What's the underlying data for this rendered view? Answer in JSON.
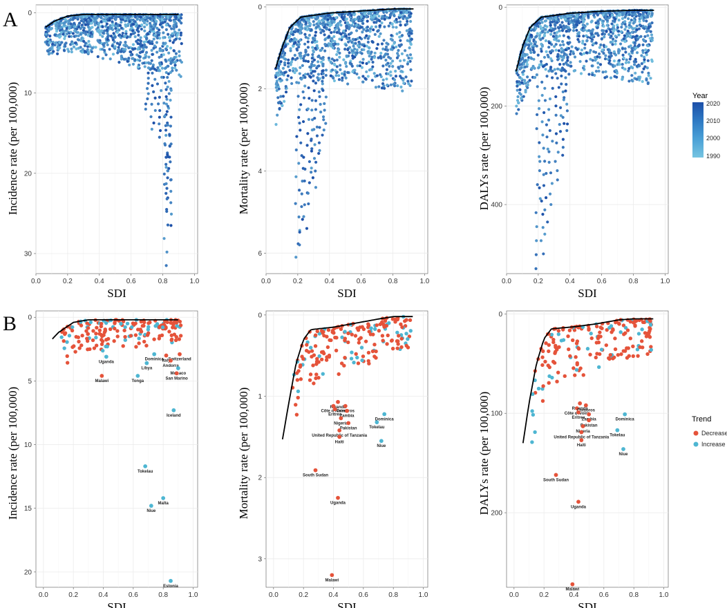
{
  "panel_letters": [
    "A",
    "B"
  ],
  "legend_year": {
    "title": "Year",
    "labels": [
      "2020",
      "2010",
      "2000",
      "1990"
    ],
    "colors": [
      "#1c4fa8",
      "#2e79c3",
      "#4aa0d6",
      "#76c4e1"
    ]
  },
  "legend_trend": {
    "title": "Trend",
    "items": [
      {
        "label": "Decrease",
        "color": "#e5533a"
      },
      {
        "label": "Increase",
        "color": "#4eb6d2"
      }
    ]
  },
  "colors": {
    "decrease": "#e5533a",
    "increase": "#4eb6d2",
    "frontier": "#000000",
    "grid": "#ebebeb",
    "year_high": "#1c4fa8",
    "year_low": "#76c4e1"
  },
  "chart_data": [
    {
      "id": "A1",
      "type": "scatter",
      "title": "",
      "xlabel": "SDI",
      "ylabel": "Incidence rate (per 100,000)",
      "xlim": [
        0,
        1.02
      ],
      "ylim": [
        -1,
        32.5
      ],
      "y_reversed": true,
      "x_ticks": [
        "0.0",
        "0.2",
        "0.4",
        "0.6",
        "0.8",
        "1.0"
      ],
      "y_ticks": [
        "0",
        "10",
        "20",
        "30"
      ],
      "frontier": [
        [
          0.06,
          1.8
        ],
        [
          0.12,
          1.0
        ],
        [
          0.2,
          0.4
        ],
        [
          0.3,
          0.2
        ],
        [
          0.5,
          0.2
        ],
        [
          0.7,
          0.2
        ],
        [
          0.9,
          0.2
        ]
      ],
      "color_by": "year",
      "outliers": [
        [
          0.82,
          31.5
        ],
        [
          0.84,
          26.5
        ],
        [
          0.83,
          24.5
        ],
        [
          0.84,
          20.8
        ],
        [
          0.82,
          22.5
        ],
        [
          0.78,
          15.5
        ],
        [
          0.74,
          14.5
        ],
        [
          0.7,
          12
        ]
      ]
    },
    {
      "id": "A2",
      "type": "scatter",
      "title": "",
      "xlabel": "SDI",
      "ylabel": "Mortality rate (per 100,000)",
      "xlim": [
        0,
        1.02
      ],
      "ylim": [
        -0.05,
        6.5
      ],
      "y_reversed": true,
      "x_ticks": [
        "0.0",
        "0.2",
        "0.4",
        "0.6",
        "0.8",
        "1.0"
      ],
      "y_ticks": [
        "0",
        "2",
        "4",
        "6"
      ],
      "frontier": [
        [
          0.06,
          1.5
        ],
        [
          0.1,
          1.0
        ],
        [
          0.15,
          0.5
        ],
        [
          0.22,
          0.25
        ],
        [
          0.4,
          0.15
        ],
        [
          0.6,
          0.1
        ],
        [
          0.8,
          0.05
        ],
        [
          0.93,
          0.05
        ]
      ],
      "color_by": "year",
      "outliers": [
        [
          0.2,
          6.1
        ],
        [
          0.22,
          5.8
        ],
        [
          0.25,
          5.4
        ],
        [
          0.28,
          4.8
        ],
        [
          0.3,
          4.4
        ],
        [
          0.32,
          4.0
        ],
        [
          0.35,
          3.5
        ],
        [
          0.37,
          3.0
        ]
      ]
    },
    {
      "id": "A3",
      "type": "scatter",
      "title": "",
      "xlabel": "SDI",
      "ylabel": "DALYs rate (per 100,000)",
      "xlim": [
        0,
        1.02
      ],
      "ylim": [
        -5,
        540
      ],
      "y_reversed": true,
      "x_ticks": [
        "0.0",
        "0.2",
        "0.4",
        "0.6",
        "0.8",
        "1.0"
      ],
      "y_ticks": [
        "0",
        "200",
        "400"
      ],
      "frontier": [
        [
          0.06,
          130
        ],
        [
          0.1,
          80
        ],
        [
          0.15,
          40
        ],
        [
          0.22,
          20
        ],
        [
          0.4,
          12
        ],
        [
          0.6,
          8
        ],
        [
          0.8,
          6
        ],
        [
          0.93,
          6
        ]
      ],
      "color_by": "year",
      "outliers": [
        [
          0.2,
          530
        ],
        [
          0.22,
          500
        ],
        [
          0.25,
          460
        ],
        [
          0.28,
          400
        ],
        [
          0.32,
          350
        ],
        [
          0.35,
          300
        ],
        [
          0.37,
          250
        ]
      ]
    },
    {
      "id": "B1",
      "type": "scatter",
      "title": "",
      "xlabel": "SDI",
      "ylabel": "Incidence rate (per 100,000)",
      "xlim": [
        -0.05,
        1.03
      ],
      "ylim": [
        -0.5,
        21.2
      ],
      "y_reversed": true,
      "x_ticks": [
        "0.0",
        "0.2",
        "0.4",
        "0.6",
        "0.8",
        "1.0"
      ],
      "y_ticks": [
        "0",
        "5",
        "10",
        "15",
        "20"
      ],
      "frontier": [
        [
          0.06,
          1.7
        ],
        [
          0.1,
          1.2
        ],
        [
          0.15,
          0.8
        ],
        [
          0.2,
          0.4
        ],
        [
          0.3,
          0.2
        ],
        [
          0.5,
          0.2
        ],
        [
          0.7,
          0.2
        ],
        [
          0.9,
          0.2
        ]
      ],
      "labeled_points": [
        {
          "name": "Switzerland",
          "sdi": 0.91,
          "value": 2.9,
          "trend": "decrease"
        },
        {
          "name": "Dominica",
          "sdi": 0.74,
          "value": 2.9,
          "trend": "increase"
        },
        {
          "name": "Italy",
          "sdi": 0.82,
          "value": 3.0,
          "trend": "decrease"
        },
        {
          "name": "Andorra",
          "sdi": 0.85,
          "value": 3.4,
          "trend": "decrease"
        },
        {
          "name": "Uganda",
          "sdi": 0.42,
          "value": 3.1,
          "trend": "increase"
        },
        {
          "name": "Libya",
          "sdi": 0.69,
          "value": 3.6,
          "trend": "increase"
        },
        {
          "name": "Monaco",
          "sdi": 0.9,
          "value": 4.0,
          "trend": "increase"
        },
        {
          "name": "Malawi",
          "sdi": 0.39,
          "value": 4.6,
          "trend": "decrease"
        },
        {
          "name": "Tonga",
          "sdi": 0.63,
          "value": 4.6,
          "trend": "increase"
        },
        {
          "name": "San Marino",
          "sdi": 0.89,
          "value": 4.4,
          "trend": "decrease"
        },
        {
          "name": "Iceland",
          "sdi": 0.87,
          "value": 7.3,
          "trend": "increase"
        },
        {
          "name": "Tokelau",
          "sdi": 0.68,
          "value": 11.7,
          "trend": "increase"
        },
        {
          "name": "Malta",
          "sdi": 0.8,
          "value": 14.2,
          "trend": "increase"
        },
        {
          "name": "Niue",
          "sdi": 0.72,
          "value": 14.8,
          "trend": "increase"
        },
        {
          "name": "Estonia",
          "sdi": 0.85,
          "value": 20.7,
          "trend": "increase"
        }
      ]
    },
    {
      "id": "B2",
      "type": "scatter",
      "title": "",
      "xlabel": "SDI",
      "ylabel": "Mortality rate (per 100,000)",
      "xlim": [
        -0.05,
        1.03
      ],
      "ylim": [
        -0.05,
        3.35
      ],
      "y_reversed": true,
      "x_ticks": [
        "0.0",
        "0.2",
        "0.4",
        "0.6",
        "0.8",
        "1.0"
      ],
      "y_ticks": [
        "0",
        "1",
        "2",
        "3"
      ],
      "frontier": [
        [
          0.06,
          1.53
        ],
        [
          0.1,
          1.1
        ],
        [
          0.15,
          0.6
        ],
        [
          0.2,
          0.3
        ],
        [
          0.25,
          0.18
        ],
        [
          0.4,
          0.15
        ],
        [
          0.55,
          0.1
        ],
        [
          0.7,
          0.05
        ],
        [
          0.8,
          0.02
        ],
        [
          0.93,
          0.02
        ]
      ],
      "labeled_points": [
        {
          "name": "Rwanda",
          "sdi": 0.43,
          "value": 1.07,
          "trend": "decrease"
        },
        {
          "name": "Côte d'Ivoire",
          "sdi": 0.4,
          "value": 1.12,
          "trend": "decrease"
        },
        {
          "name": "Comoros",
          "sdi": 0.48,
          "value": 1.12,
          "trend": "decrease"
        },
        {
          "name": "Eritrea",
          "sdi": 0.41,
          "value": 1.16,
          "trend": "decrease"
        },
        {
          "name": "Zambia",
          "sdi": 0.49,
          "value": 1.18,
          "trend": "decrease"
        },
        {
          "name": "Dominica",
          "sdi": 0.74,
          "value": 1.22,
          "trend": "increase"
        },
        {
          "name": "Nigeria",
          "sdi": 0.45,
          "value": 1.27,
          "trend": "decrease"
        },
        {
          "name": "Pakistan",
          "sdi": 0.5,
          "value": 1.33,
          "trend": "decrease"
        },
        {
          "name": "Tokelau",
          "sdi": 0.69,
          "value": 1.32,
          "trend": "increase"
        },
        {
          "name": "United Republic of Tanzania",
          "sdi": 0.44,
          "value": 1.42,
          "trend": "decrease"
        },
        {
          "name": "Niue",
          "sdi": 0.72,
          "value": 1.55,
          "trend": "increase"
        },
        {
          "name": "Haiti",
          "sdi": 0.44,
          "value": 1.5,
          "trend": "decrease"
        },
        {
          "name": "South Sudan",
          "sdi": 0.28,
          "value": 1.91,
          "trend": "decrease"
        },
        {
          "name": "Uganda",
          "sdi": 0.43,
          "value": 2.25,
          "trend": "decrease"
        },
        {
          "name": "Malawi",
          "sdi": 0.39,
          "value": 3.2,
          "trend": "decrease"
        }
      ]
    },
    {
      "id": "B3",
      "type": "scatter",
      "title": "",
      "xlabel": "SDI",
      "ylabel": "DALYs  rate (per 100,000)",
      "xlim": [
        -0.05,
        1.03
      ],
      "ylim": [
        -3,
        275
      ],
      "y_reversed": true,
      "x_ticks": [
        "0.0",
        "0.2",
        "0.4",
        "0.6",
        "0.8",
        "1.0"
      ],
      "y_ticks": [
        "0",
        "100",
        "200"
      ],
      "frontier": [
        [
          0.06,
          130
        ],
        [
          0.1,
          90
        ],
        [
          0.15,
          50
        ],
        [
          0.2,
          25
        ],
        [
          0.25,
          15
        ],
        [
          0.4,
          13
        ],
        [
          0.55,
          10
        ],
        [
          0.7,
          6
        ],
        [
          0.8,
          5
        ],
        [
          0.93,
          5
        ]
      ],
      "labeled_points": [
        {
          "name": "Rwanda",
          "sdi": 0.44,
          "value": 90,
          "trend": "decrease"
        },
        {
          "name": "Côte d'Ivoire",
          "sdi": 0.42,
          "value": 95,
          "trend": "decrease"
        },
        {
          "name": "Comoros",
          "sdi": 0.48,
          "value": 92,
          "trend": "decrease"
        },
        {
          "name": "Dominica",
          "sdi": 0.74,
          "value": 101,
          "trend": "increase"
        },
        {
          "name": "Eritrea",
          "sdi": 0.43,
          "value": 99,
          "trend": "decrease"
        },
        {
          "name": "Zambia",
          "sdi": 0.5,
          "value": 101,
          "trend": "decrease"
        },
        {
          "name": "Pakistan",
          "sdi": 0.5,
          "value": 107,
          "trend": "decrease"
        },
        {
          "name": "Tokelau",
          "sdi": 0.69,
          "value": 117,
          "trend": "increase"
        },
        {
          "name": "Nigeria",
          "sdi": 0.46,
          "value": 113,
          "trend": "decrease"
        },
        {
          "name": "United Republic of Tanzania",
          "sdi": 0.45,
          "value": 119,
          "trend": "decrease"
        },
        {
          "name": "Haiti",
          "sdi": 0.45,
          "value": 127,
          "trend": "decrease"
        },
        {
          "name": "Niue",
          "sdi": 0.73,
          "value": 136,
          "trend": "increase"
        },
        {
          "name": "South Sudan",
          "sdi": 0.28,
          "value": 162,
          "trend": "decrease"
        },
        {
          "name": "Uganda",
          "sdi": 0.43,
          "value": 189,
          "trend": "decrease"
        },
        {
          "name": "Malawi",
          "sdi": 0.39,
          "value": 272,
          "trend": "decrease"
        }
      ]
    }
  ]
}
